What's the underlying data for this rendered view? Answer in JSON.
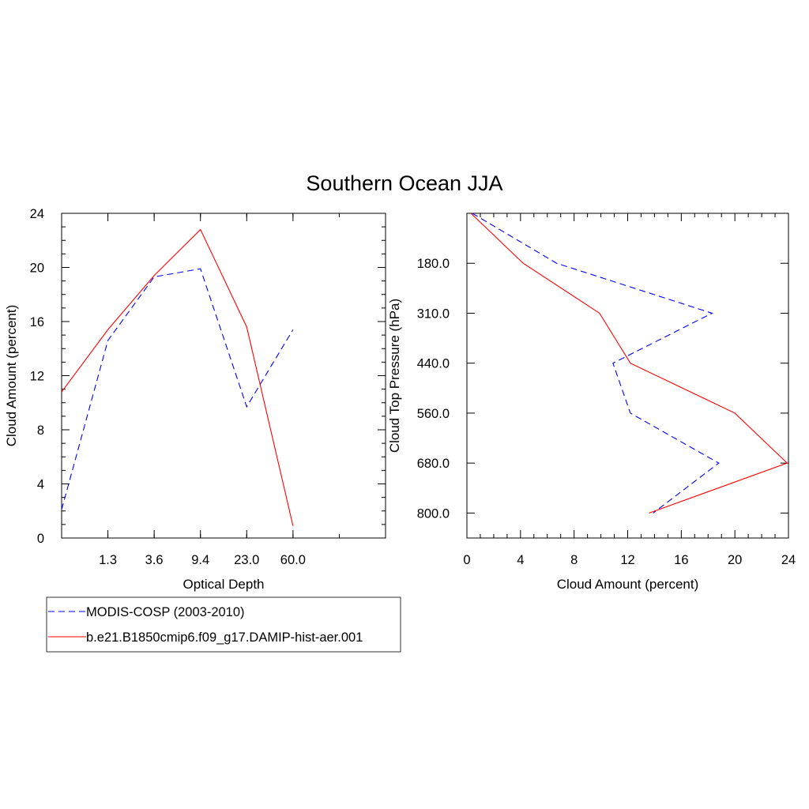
{
  "title": "Southern Ocean JJA",
  "colors": {
    "obs": "#0000ff",
    "model": "#ff0000",
    "axes": "#000000"
  },
  "legend": {
    "placement": "bottom-left",
    "entries": [
      {
        "label": "MODIS-COSP (2003-2010)",
        "color": "#0000ff",
        "dash": "dashed"
      },
      {
        "label": "b.e21.B1850cmip6.f09_g17.DAMIP-hist-aer.001",
        "color": "#ff0000",
        "dash": "solid"
      }
    ]
  },
  "chart_data": [
    {
      "type": "line",
      "xlabel": "Optical Depth",
      "ylabel": "Cloud Amount (percent)",
      "x_tick_labels": [
        "1.3",
        "3.6",
        "9.4",
        "23.0",
        "60.0"
      ],
      "y_ticks": [
        0,
        4,
        8,
        12,
        16,
        20,
        24
      ],
      "ylim": [
        0,
        24
      ],
      "x_bins": 7,
      "series": [
        {
          "name": "MODIS-COSP (2003-2010)",
          "values": [
            2.1,
            14.6,
            19.3,
            19.9,
            9.7,
            15.4
          ]
        },
        {
          "name": "b.e21.B1850cmip6.f09_g17.DAMIP-hist-aer.001",
          "values": [
            10.8,
            15.4,
            19.4,
            22.8,
            15.6,
            0.9
          ]
        }
      ]
    },
    {
      "type": "line",
      "xlabel": "Cloud Amount (percent)",
      "ylabel": "Cloud Top Pressure (hPa)",
      "x_ticks": [
        0,
        4,
        8,
        12,
        16,
        20,
        24
      ],
      "xlim": [
        0,
        24
      ],
      "y_tick_labels": [
        "180.0",
        "310.0",
        "440.0",
        "560.0",
        "680.0",
        "800.0"
      ],
      "y_bins": 7,
      "series": [
        {
          "name": "MODIS-COSP (2003-2010)",
          "values": [
            0.4,
            6.7,
            18.3,
            10.9,
            12.2,
            18.8,
            13.9
          ]
        },
        {
          "name": "b.e21.B1850cmip6.f09_g17.DAMIP-hist-aer.001",
          "values": [
            0.3,
            4.2,
            9.9,
            12.2,
            20.0,
            23.9,
            13.6
          ]
        }
      ]
    }
  ]
}
